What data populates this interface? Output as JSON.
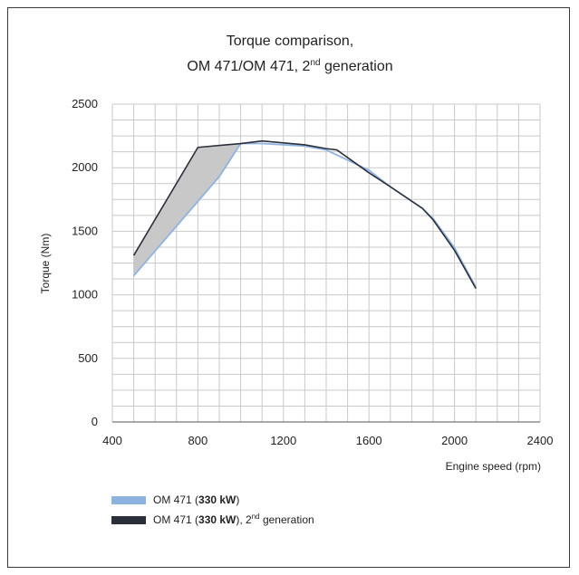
{
  "chart_data": {
    "type": "line",
    "title_line1": "Torque comparison,",
    "title_line2": "OM 471/OM 471, 2",
    "title_line2_sup": "nd",
    "title_line2_tail": " generation",
    "xlabel": "Engine speed (rpm)",
    "ylabel": "Torque (Nm)",
    "xlim": [
      400,
      2400
    ],
    "ylim": [
      0,
      2500
    ],
    "x_ticks": [
      400,
      800,
      1200,
      1600,
      2000,
      2400
    ],
    "y_ticks": [
      0,
      500,
      1000,
      1500,
      2000,
      2500
    ],
    "grid": true,
    "x_minor_step": 100,
    "y_minor_step": 125,
    "legend_position": "bottom-left",
    "series": [
      {
        "name": "OM 471 (330 kW)",
        "legend": {
          "prefix": "OM 471 (",
          "bold": "330 kW",
          "suffix": ")",
          "sup": "",
          "tail": ""
        },
        "color": "#8fb3e0",
        "points": [
          [
            500,
            1150
          ],
          [
            900,
            1930
          ],
          [
            1000,
            2190
          ],
          [
            1100,
            2190
          ],
          [
            1300,
            2170
          ],
          [
            1400,
            2140
          ],
          [
            1600,
            1980
          ],
          [
            1700,
            1850
          ],
          [
            1850,
            1680
          ],
          [
            1900,
            1600
          ],
          [
            2000,
            1370
          ],
          [
            2100,
            1060
          ]
        ]
      },
      {
        "name": "OM 471 (330 kW), 2nd generation",
        "legend": {
          "prefix": "OM 471 (",
          "bold": "330 kW",
          "suffix": "), 2",
          "sup": "nd",
          "tail": " generation"
        },
        "color": "#2b2f3a",
        "points": [
          [
            500,
            1310
          ],
          [
            800,
            2160
          ],
          [
            1000,
            2190
          ],
          [
            1100,
            2210
          ],
          [
            1300,
            2180
          ],
          [
            1400,
            2150
          ],
          [
            1450,
            2140
          ],
          [
            1600,
            1960
          ],
          [
            1700,
            1850
          ],
          [
            1850,
            1680
          ],
          [
            1900,
            1590
          ],
          [
            2000,
            1350
          ],
          [
            2100,
            1050
          ]
        ]
      }
    ],
    "shaded_region": {
      "between": [
        "OM 471 (330 kW), 2nd generation",
        "OM 471 (330 kW)"
      ],
      "x_range": [
        500,
        1000
      ],
      "color": "#c8c8c8"
    }
  }
}
